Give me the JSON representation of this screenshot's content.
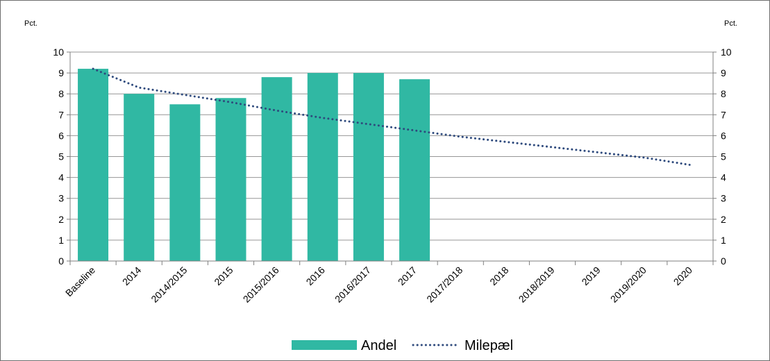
{
  "chart_data": {
    "type": "bar",
    "categories": [
      "Baseline",
      "2014",
      "2014/2015",
      "2015",
      "2015/2016",
      "2016",
      "2016/2017",
      "2017",
      "2017/2018",
      "2018",
      "2018/2019",
      "2019",
      "2019/2020",
      "2020"
    ],
    "series": [
      {
        "name": "Andel",
        "type": "bar",
        "color": "#30b8a3",
        "values": [
          9.2,
          8.0,
          7.5,
          7.8,
          8.8,
          9.0,
          9.0,
          8.7,
          null,
          null,
          null,
          null,
          null,
          null
        ]
      },
      {
        "name": "Milepæl",
        "type": "line",
        "style": "dotted",
        "color": "#2e4a7d",
        "values": [
          9.2,
          8.3,
          7.95,
          7.6,
          7.2,
          6.85,
          6.55,
          6.25,
          5.95,
          5.7,
          5.45,
          5.2,
          4.95,
          4.6
        ]
      }
    ],
    "y_left_label": "Pct.",
    "y_right_label": "Pct.",
    "yticks": [
      0,
      1,
      2,
      3,
      4,
      5,
      6,
      7,
      8,
      9,
      10
    ],
    "ylim": [
      0,
      10
    ],
    "grid": true,
    "legend_position": "bottom-center"
  }
}
